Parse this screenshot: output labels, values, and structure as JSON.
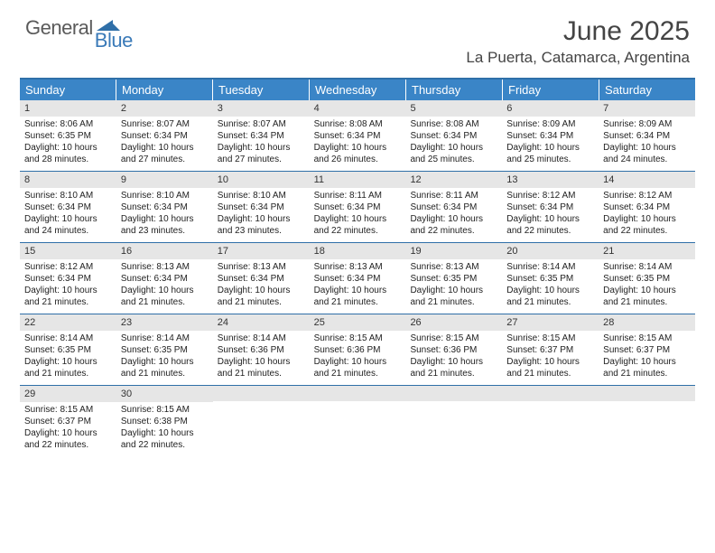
{
  "logo": {
    "part1": "General",
    "part2": "Blue"
  },
  "title": "June 2025",
  "location": "La Puerta, Catamarca, Argentina",
  "header_bg": "#3a85c7",
  "border_color": "#2f6fa8",
  "daynum_bg": "#e6e6e6",
  "weekdays": [
    "Sunday",
    "Monday",
    "Tuesday",
    "Wednesday",
    "Thursday",
    "Friday",
    "Saturday"
  ],
  "weeks": [
    [
      {
        "n": "1",
        "sr": "8:06 AM",
        "ss": "6:35 PM",
        "dh": "10",
        "dm": "28"
      },
      {
        "n": "2",
        "sr": "8:07 AM",
        "ss": "6:34 PM",
        "dh": "10",
        "dm": "27"
      },
      {
        "n": "3",
        "sr": "8:07 AM",
        "ss": "6:34 PM",
        "dh": "10",
        "dm": "27"
      },
      {
        "n": "4",
        "sr": "8:08 AM",
        "ss": "6:34 PM",
        "dh": "10",
        "dm": "26"
      },
      {
        "n": "5",
        "sr": "8:08 AM",
        "ss": "6:34 PM",
        "dh": "10",
        "dm": "25"
      },
      {
        "n": "6",
        "sr": "8:09 AM",
        "ss": "6:34 PM",
        "dh": "10",
        "dm": "25"
      },
      {
        "n": "7",
        "sr": "8:09 AM",
        "ss": "6:34 PM",
        "dh": "10",
        "dm": "24"
      }
    ],
    [
      {
        "n": "8",
        "sr": "8:10 AM",
        "ss": "6:34 PM",
        "dh": "10",
        "dm": "24"
      },
      {
        "n": "9",
        "sr": "8:10 AM",
        "ss": "6:34 PM",
        "dh": "10",
        "dm": "23"
      },
      {
        "n": "10",
        "sr": "8:10 AM",
        "ss": "6:34 PM",
        "dh": "10",
        "dm": "23"
      },
      {
        "n": "11",
        "sr": "8:11 AM",
        "ss": "6:34 PM",
        "dh": "10",
        "dm": "22"
      },
      {
        "n": "12",
        "sr": "8:11 AM",
        "ss": "6:34 PM",
        "dh": "10",
        "dm": "22"
      },
      {
        "n": "13",
        "sr": "8:12 AM",
        "ss": "6:34 PM",
        "dh": "10",
        "dm": "22"
      },
      {
        "n": "14",
        "sr": "8:12 AM",
        "ss": "6:34 PM",
        "dh": "10",
        "dm": "22"
      }
    ],
    [
      {
        "n": "15",
        "sr": "8:12 AM",
        "ss": "6:34 PM",
        "dh": "10",
        "dm": "21"
      },
      {
        "n": "16",
        "sr": "8:13 AM",
        "ss": "6:34 PM",
        "dh": "10",
        "dm": "21"
      },
      {
        "n": "17",
        "sr": "8:13 AM",
        "ss": "6:34 PM",
        "dh": "10",
        "dm": "21"
      },
      {
        "n": "18",
        "sr": "8:13 AM",
        "ss": "6:34 PM",
        "dh": "10",
        "dm": "21"
      },
      {
        "n": "19",
        "sr": "8:13 AM",
        "ss": "6:35 PM",
        "dh": "10",
        "dm": "21"
      },
      {
        "n": "20",
        "sr": "8:14 AM",
        "ss": "6:35 PM",
        "dh": "10",
        "dm": "21"
      },
      {
        "n": "21",
        "sr": "8:14 AM",
        "ss": "6:35 PM",
        "dh": "10",
        "dm": "21"
      }
    ],
    [
      {
        "n": "22",
        "sr": "8:14 AM",
        "ss": "6:35 PM",
        "dh": "10",
        "dm": "21"
      },
      {
        "n": "23",
        "sr": "8:14 AM",
        "ss": "6:35 PM",
        "dh": "10",
        "dm": "21"
      },
      {
        "n": "24",
        "sr": "8:14 AM",
        "ss": "6:36 PM",
        "dh": "10",
        "dm": "21"
      },
      {
        "n": "25",
        "sr": "8:15 AM",
        "ss": "6:36 PM",
        "dh": "10",
        "dm": "21"
      },
      {
        "n": "26",
        "sr": "8:15 AM",
        "ss": "6:36 PM",
        "dh": "10",
        "dm": "21"
      },
      {
        "n": "27",
        "sr": "8:15 AM",
        "ss": "6:37 PM",
        "dh": "10",
        "dm": "21"
      },
      {
        "n": "28",
        "sr": "8:15 AM",
        "ss": "6:37 PM",
        "dh": "10",
        "dm": "21"
      }
    ],
    [
      {
        "n": "29",
        "sr": "8:15 AM",
        "ss": "6:37 PM",
        "dh": "10",
        "dm": "22"
      },
      {
        "n": "30",
        "sr": "8:15 AM",
        "ss": "6:38 PM",
        "dh": "10",
        "dm": "22"
      },
      null,
      null,
      null,
      null,
      null
    ]
  ],
  "labels": {
    "sunrise": "Sunrise:",
    "sunset": "Sunset:",
    "daylight": "Daylight:",
    "hours": "hours",
    "and": "and",
    "minutes": "minutes."
  }
}
